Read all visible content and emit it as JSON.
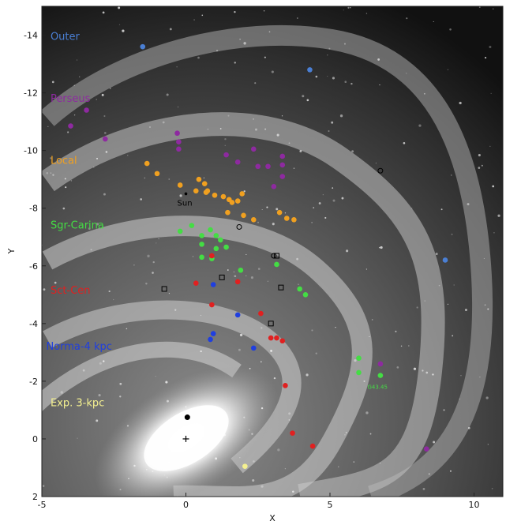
{
  "chart_data": {
    "type": "scatter",
    "xlabel": "X",
    "ylabel": "Y",
    "xlim": [
      -5,
      11
    ],
    "ylim": [
      -15,
      2
    ],
    "y_axis_inverted": true,
    "grid": false,
    "x_ticks": [
      "-5",
      "0",
      "5",
      "10"
    ],
    "x_tick_values": [
      -5,
      0,
      5,
      10
    ],
    "y_ticks": [
      "-14",
      "-12",
      "-10",
      "-8",
      "-6",
      "-4",
      "-2",
      "0",
      "2"
    ],
    "y_tick_values": [
      -14,
      -12,
      -10,
      -8,
      -6,
      -4,
      -2,
      0,
      2
    ],
    "arm_labels": [
      {
        "text": "Outer",
        "x": -4.7,
        "y": -13.95,
        "color": "#4a7fd4"
      },
      {
        "text": "Perseus",
        "x": -4.7,
        "y": -11.8,
        "color": "#8e2aa0"
      },
      {
        "text": "Local",
        "x": -4.7,
        "y": -9.65,
        "color": "#f0a020"
      },
      {
        "text": "Sgr-Carina",
        "x": -4.7,
        "y": -7.4,
        "color": "#44dd44"
      },
      {
        "text": "Sct-Cen",
        "x": -4.7,
        "y": -5.15,
        "color": "#e02020"
      },
      {
        "text": "Norma-4 kpc",
        "x": -4.85,
        "y": -3.2,
        "color": "#1f3fe0"
      },
      {
        "text": "Exp. 3-kpc",
        "x": -4.7,
        "y": -1.25,
        "color": "#f4f090"
      }
    ],
    "annotations": [
      {
        "text": "Sun",
        "x": -0.3,
        "y": -8.2
      },
      {
        "text": "G43.45",
        "x": 6.3,
        "y": -1.85
      }
    ],
    "series": [
      {
        "arm": "outer",
        "color": "#4a7fd4",
        "points": [
          [
            -1.5,
            -13.6
          ],
          [
            4.3,
            -12.8
          ],
          [
            9.0,
            -6.2
          ]
        ]
      },
      {
        "arm": "perseus",
        "color": "#8e2aa0",
        "points": [
          [
            -4.0,
            -10.85
          ],
          [
            -3.45,
            -11.4
          ],
          [
            -2.8,
            -10.4
          ],
          [
            -0.3,
            -10.6
          ],
          [
            -0.25,
            -10.3
          ],
          [
            -0.25,
            -10.05
          ],
          [
            1.4,
            -9.85
          ],
          [
            1.8,
            -9.6
          ],
          [
            2.35,
            -10.05
          ],
          [
            2.5,
            -9.45
          ],
          [
            2.85,
            -9.45
          ],
          [
            3.35,
            -9.8
          ],
          [
            3.35,
            -9.5
          ],
          [
            3.35,
            -9.1
          ],
          [
            3.05,
            -8.75
          ],
          [
            6.75,
            -2.6
          ],
          [
            8.35,
            0.35
          ]
        ]
      },
      {
        "arm": "local",
        "color": "#f0a020",
        "points": [
          [
            -1.35,
            -9.55
          ],
          [
            -1.0,
            -9.2
          ],
          [
            -0.2,
            -8.8
          ],
          [
            0.45,
            -9.0
          ],
          [
            0.65,
            -8.85
          ],
          [
            0.35,
            -8.6
          ],
          [
            0.75,
            -8.6
          ],
          [
            0.7,
            -8.55
          ],
          [
            1.0,
            -8.45
          ],
          [
            1.3,
            -8.4
          ],
          [
            1.5,
            -8.3
          ],
          [
            1.6,
            -8.2
          ],
          [
            1.8,
            -8.25
          ],
          [
            1.95,
            -8.5
          ],
          [
            2.35,
            -7.6
          ],
          [
            3.25,
            -7.85
          ],
          [
            3.5,
            -7.65
          ],
          [
            3.75,
            -7.6
          ],
          [
            2.0,
            -7.75
          ],
          [
            1.45,
            -7.85
          ]
        ]
      },
      {
        "arm": "sgr-carina",
        "color": "#44dd44",
        "points": [
          [
            -0.2,
            -7.2
          ],
          [
            0.2,
            -7.4
          ],
          [
            0.55,
            -7.05
          ],
          [
            0.85,
            -7.25
          ],
          [
            1.05,
            -7.05
          ],
          [
            1.2,
            -6.9
          ],
          [
            1.4,
            -6.65
          ],
          [
            1.05,
            -6.6
          ],
          [
            0.55,
            -6.75
          ],
          [
            0.55,
            -6.3
          ],
          [
            0.9,
            -6.25
          ],
          [
            1.9,
            -5.85
          ],
          [
            3.15,
            -6.05
          ],
          [
            3.95,
            -5.2
          ],
          [
            4.15,
            -5.0
          ],
          [
            6.0,
            -2.8
          ],
          [
            6.0,
            -2.3
          ],
          [
            6.75,
            -2.2
          ]
        ]
      },
      {
        "arm": "sct-cen",
        "color": "#e02020",
        "points": [
          [
            0.35,
            -5.4
          ],
          [
            0.9,
            -6.35
          ],
          [
            1.8,
            -5.45
          ],
          [
            0.9,
            -4.65
          ],
          [
            2.6,
            -4.35
          ],
          [
            2.95,
            -3.5
          ],
          [
            3.15,
            -3.5
          ],
          [
            3.35,
            -3.4
          ],
          [
            3.45,
            -1.85
          ],
          [
            3.7,
            -0.2
          ],
          [
            4.4,
            0.25
          ]
        ]
      },
      {
        "arm": "norma-4kpc",
        "color": "#1f3fe0",
        "points": [
          [
            0.95,
            -5.35
          ],
          [
            1.8,
            -4.3
          ],
          [
            0.95,
            -3.65
          ],
          [
            0.85,
            -3.45
          ],
          [
            2.35,
            -3.15
          ]
        ]
      },
      {
        "arm": "exp-3kpc",
        "color": "#f4f090",
        "points": [
          [
            2.05,
            0.95
          ]
        ]
      }
    ],
    "markers": {
      "open_circles": [
        [
          1.85,
          -7.35
        ],
        [
          6.75,
          -9.3
        ],
        [
          3.05,
          -6.35
        ]
      ],
      "open_squares": [
        [
          -0.75,
          -5.2
        ],
        [
          1.25,
          -5.6
        ],
        [
          3.3,
          -5.25
        ],
        [
          2.95,
          -4.0
        ],
        [
          3.15,
          -6.35
        ]
      ],
      "filled_black": [
        [
          0.05,
          -0.75
        ]
      ],
      "cross": [
        0.0,
        0.0
      ],
      "sun": [
        0.0,
        -8.5
      ]
    }
  }
}
